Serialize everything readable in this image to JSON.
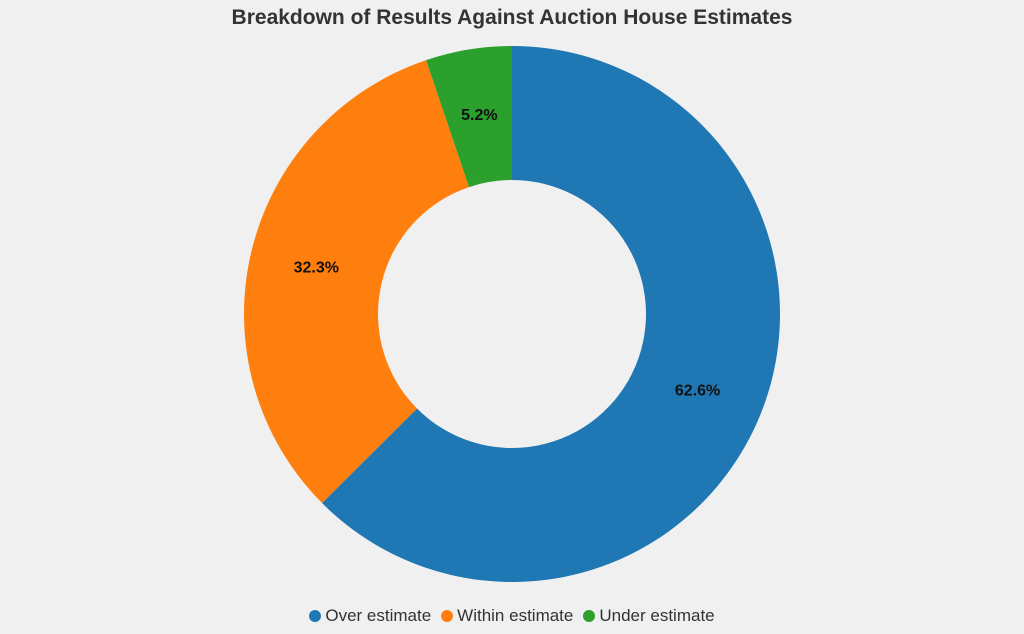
{
  "chart_data": {
    "type": "pie",
    "title": "Breakdown of Results Against Auction House Estimates",
    "hole": 0.5,
    "legend_position": "bottom",
    "slices": [
      {
        "label": "Over estimate",
        "value": 62.6,
        "display": "62.6%",
        "color": "#1f77b4"
      },
      {
        "label": "Within estimate",
        "value": 32.3,
        "display": "32.3%",
        "color": "#ff7f0e"
      },
      {
        "label": "Under estimate",
        "value": 5.2,
        "display": "5.2%",
        "color": "#2ca02c"
      }
    ]
  }
}
